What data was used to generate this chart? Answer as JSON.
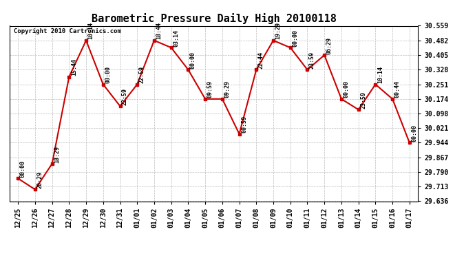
{
  "title": "Barometric Pressure Daily High 20100118",
  "copyright": "Copyright 2010 Cartronics.com",
  "x_labels": [
    "12/25",
    "12/26",
    "12/27",
    "12/28",
    "12/29",
    "12/30",
    "12/31",
    "01/01",
    "01/02",
    "01/03",
    "01/04",
    "01/05",
    "01/06",
    "01/07",
    "01/08",
    "01/09",
    "01/10",
    "01/11",
    "01/12",
    "01/13",
    "01/14",
    "01/15",
    "01/16",
    "01/17"
  ],
  "y_values": [
    29.756,
    29.698,
    29.833,
    30.29,
    30.482,
    30.251,
    30.136,
    30.251,
    30.482,
    30.444,
    30.328,
    30.174,
    30.174,
    29.99,
    30.328,
    30.482,
    30.444,
    30.328,
    30.405,
    30.174,
    30.118,
    30.251,
    30.174,
    29.944
  ],
  "time_labels": [
    "00:00",
    "20:29",
    "18:29",
    "15:44",
    "10:14",
    "00:00",
    "22:59",
    "22:59",
    "18:44",
    "03:14",
    "00:00",
    "09:59",
    "09:29",
    "00:59",
    "22:44",
    "19:29",
    "00:00",
    "23:59",
    "06:29",
    "00:00",
    "23:59",
    "10:14",
    "00:44",
    "00:00"
  ],
  "ylim_min": 29.636,
  "ylim_max": 30.559,
  "ytick_values": [
    29.636,
    29.713,
    29.79,
    29.867,
    29.944,
    30.021,
    30.098,
    30.174,
    30.251,
    30.328,
    30.405,
    30.482,
    30.559
  ],
  "line_color": "#cc0000",
  "marker_color": "#cc0000",
  "bg_color": "#ffffff",
  "grid_color": "#bbbbbb",
  "title_fontsize": 11,
  "tick_fontsize": 7,
  "time_label_fontsize": 6,
  "copyright_fontsize": 6.5
}
